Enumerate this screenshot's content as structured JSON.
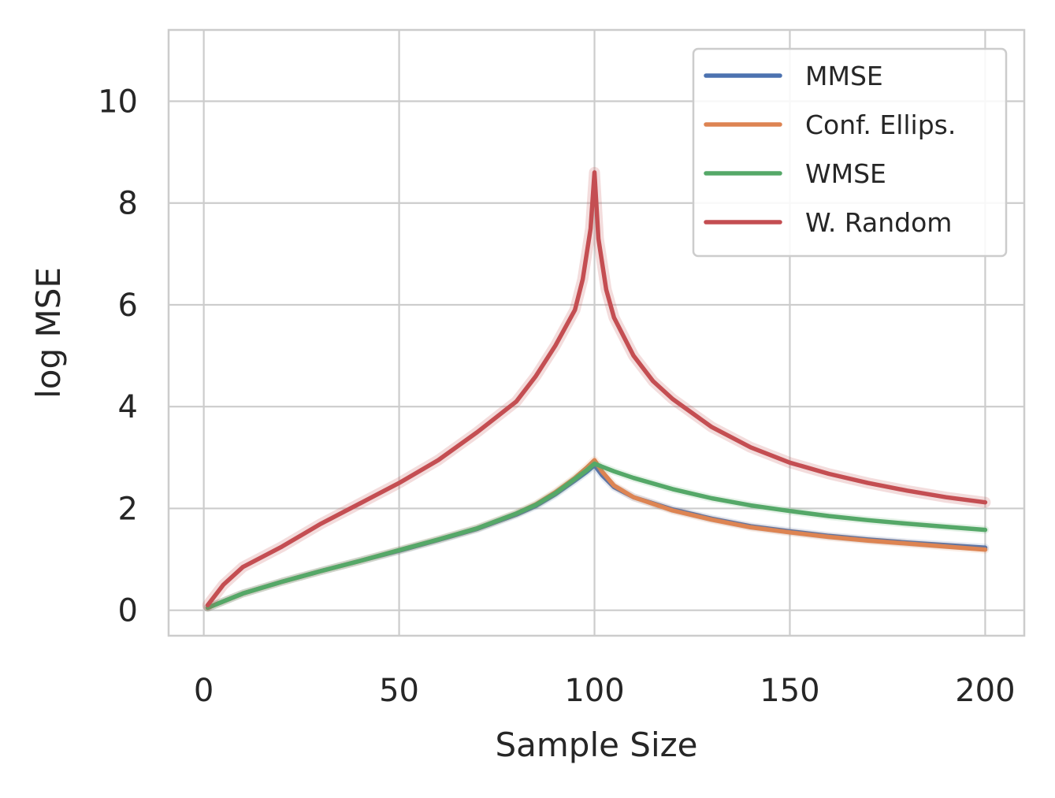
{
  "chart_data": {
    "type": "line",
    "xlabel": "Sample Size",
    "ylabel": "log MSE",
    "xlim": [
      -9,
      210
    ],
    "ylim": [
      -0.5,
      11.4
    ],
    "x_ticks": [
      0,
      50,
      100,
      150,
      200
    ],
    "y_ticks": [
      0,
      2,
      4,
      6,
      8,
      10
    ],
    "grid": true,
    "legend_position": "top-right",
    "series": [
      {
        "name": "MMSE",
        "color": "#4c72b0",
        "x": [
          1,
          10,
          20,
          30,
          40,
          50,
          60,
          70,
          80,
          85,
          90,
          95,
          98,
          100,
          102,
          105,
          110,
          120,
          130,
          140,
          150,
          160,
          170,
          180,
          190,
          200
        ],
        "y": [
          0.05,
          0.33,
          0.56,
          0.77,
          0.97,
          1.17,
          1.38,
          1.6,
          1.88,
          2.05,
          2.28,
          2.55,
          2.72,
          2.85,
          2.65,
          2.42,
          2.22,
          1.98,
          1.8,
          1.65,
          1.55,
          1.46,
          1.39,
          1.33,
          1.28,
          1.23
        ]
      },
      {
        "name": "Conf. Ellips.",
        "color": "#dd8452",
        "x": [
          1,
          10,
          20,
          30,
          40,
          50,
          60,
          70,
          80,
          85,
          90,
          95,
          98,
          100,
          102,
          105,
          110,
          120,
          130,
          140,
          150,
          160,
          170,
          180,
          190,
          200
        ],
        "y": [
          0.05,
          0.33,
          0.56,
          0.77,
          0.97,
          1.18,
          1.39,
          1.61,
          1.9,
          2.08,
          2.32,
          2.6,
          2.8,
          2.95,
          2.72,
          2.45,
          2.22,
          1.96,
          1.78,
          1.63,
          1.53,
          1.44,
          1.37,
          1.31,
          1.25,
          1.19
        ]
      },
      {
        "name": "WMSE",
        "color": "#55a868",
        "x": [
          1,
          10,
          20,
          30,
          40,
          50,
          60,
          70,
          80,
          85,
          90,
          95,
          98,
          100,
          102,
          105,
          110,
          120,
          130,
          140,
          150,
          160,
          170,
          180,
          190,
          200
        ],
        "y": [
          0.05,
          0.33,
          0.56,
          0.77,
          0.97,
          1.18,
          1.39,
          1.61,
          1.9,
          2.07,
          2.3,
          2.58,
          2.75,
          2.88,
          2.82,
          2.73,
          2.6,
          2.38,
          2.2,
          2.06,
          1.95,
          1.85,
          1.77,
          1.7,
          1.64,
          1.58
        ]
      },
      {
        "name": "W. Random",
        "color": "#c44e52",
        "x": [
          1,
          5,
          10,
          20,
          30,
          40,
          50,
          60,
          70,
          80,
          85,
          90,
          95,
          97,
          99,
          100,
          101,
          103,
          105,
          110,
          115,
          120,
          130,
          140,
          150,
          160,
          170,
          180,
          190,
          200
        ],
        "y": [
          0.1,
          0.5,
          0.85,
          1.25,
          1.7,
          2.1,
          2.5,
          2.95,
          3.5,
          4.1,
          4.6,
          5.2,
          5.9,
          6.5,
          7.5,
          8.6,
          7.3,
          6.3,
          5.75,
          5.0,
          4.5,
          4.15,
          3.6,
          3.2,
          2.9,
          2.68,
          2.5,
          2.35,
          2.22,
          2.12
        ]
      }
    ]
  }
}
